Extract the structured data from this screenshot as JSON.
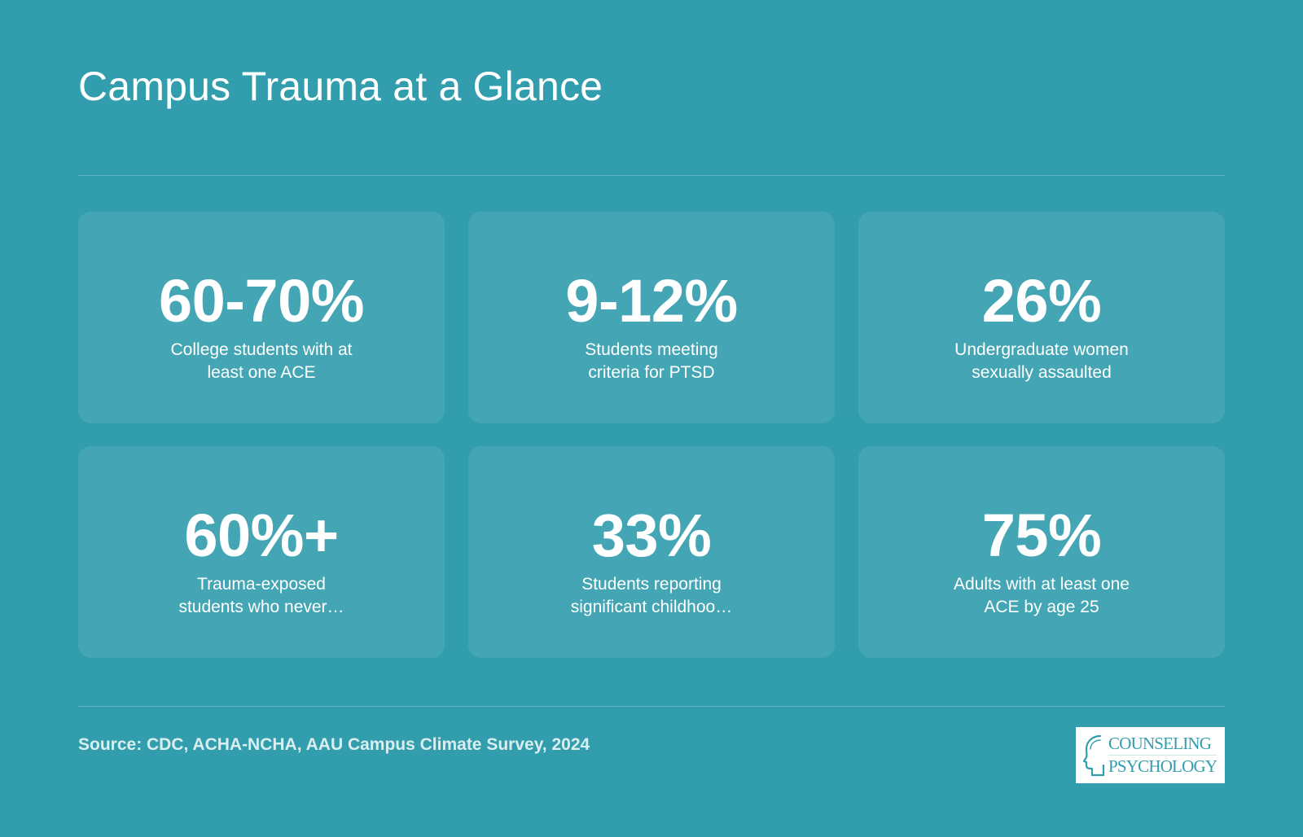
{
  "header": {
    "title": "Campus Trauma at a Glance"
  },
  "stats": [
    {
      "value": "60-70%",
      "label": "College students with at least one ACE"
    },
    {
      "value": "9-12%",
      "label": "Students meeting criteria for PTSD"
    },
    {
      "value": "26%",
      "label": "Undergraduate women sexually assaulted"
    },
    {
      "value": "60%+",
      "label": "Trauma-exposed students who never…"
    },
    {
      "value": "33%",
      "label": "Students reporting significant childhoo…"
    },
    {
      "value": "75%",
      "label": "Adults with at least one ACE by age 25"
    }
  ],
  "footer": {
    "source": "Source: CDC, ACHA-NCHA, AAU Campus Climate Survey, 2024",
    "logo_line1": "COUNSELING",
    "logo_line2": "PSYCHOLOGY"
  },
  "colors": {
    "background": "#329ead",
    "card": "#43a7b3",
    "text": "#ffffff"
  },
  "icons": {
    "logo_mark": "head-profile-icon"
  }
}
